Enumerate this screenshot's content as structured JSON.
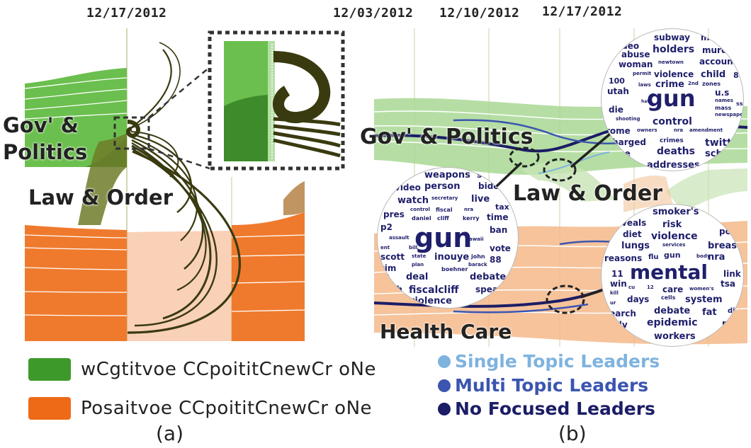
{
  "panel_a": {
    "date": "12/17/2012",
    "topic_gov": "Gov' & Politics",
    "topic_gov_line1": "Gov' &",
    "topic_gov_line2": "Politics",
    "topic_law": "Law & Order",
    "label": "(a)",
    "colors": {
      "green_light": "#5cae43",
      "green_dark": "#3d8b2a",
      "orange": "#ee7a2a",
      "dark_flow": "#3a3a10"
    }
  },
  "panel_b": {
    "dates": [
      "12/03/2012",
      "12/10/2012",
      "12/17/2012"
    ],
    "topic_gov": "Gov' & Politics",
    "topic_law": "Law & Order",
    "topic_health": "Health Care",
    "label": "(b)",
    "cloud_top_right": [
      "subway",
      "mo",
      "ideo",
      "abuse",
      "holders",
      "murde",
      "woman",
      "newtown",
      "accoun",
      "permit",
      "violence",
      "child",
      "100",
      "laws",
      "crime",
      "2nd",
      "zones",
      "utah",
      "gun",
      "u.s",
      "hate",
      "names",
      "die",
      "mass",
      "ss",
      "shooting",
      "newspaper",
      "control",
      "rome",
      "owners",
      "nra",
      "amendment",
      "charged",
      "crimes",
      "twitter",
      "rage",
      "deaths",
      "scho",
      "addresses",
      "80"
    ],
    "cloud_left": [
      "weapons",
      "s",
      "video",
      "person",
      "bide",
      "secretary",
      "live",
      "watch",
      "tax",
      "control",
      "fiscal",
      "nra",
      "pres",
      "daniel",
      "cliff",
      "kerry",
      "time",
      "p2",
      "gun",
      "ban",
      "assault",
      "hawaii",
      "ent",
      "bill",
      "vote",
      "scott",
      "state",
      "inouye",
      "john",
      "88",
      "tim",
      "plan",
      "barack",
      "boehner",
      "debate",
      "t-s",
      "deal",
      "outh",
      "speak",
      "fiscalcliff",
      "violence"
    ],
    "cloud_bottom_right": [
      "smoker's",
      "publ",
      "veals",
      "risk",
      "pollo",
      "diet",
      "violence",
      "lungs",
      "services",
      "breast",
      "reasons",
      "flu",
      "gun",
      "body",
      "nra",
      "11",
      "mental",
      "link",
      "win",
      "cu",
      "12",
      "women's",
      "tsa",
      "care",
      "kill",
      "days",
      "cells",
      "system",
      "ur",
      "search",
      "debate",
      "fat",
      "di",
      "ually",
      "epidemic",
      "mon",
      "workers",
      "hl"
    ]
  },
  "legend": [
    {
      "label": "wCgtitvoe CCpoititCnewCr oNe",
      "color": "#3d9a2a"
    },
    {
      "label": "Posaitvoe CCpoititCnewCr oNe",
      "color": "#ee6a16"
    }
  ],
  "leaders": [
    {
      "label": "Single Topic Leaders",
      "color": "#7fb3df"
    },
    {
      "label": "Multi Topic Leaders",
      "color": "#3b55b0"
    },
    {
      "label": "No Focused Leaders",
      "color": "#1b1d66"
    }
  ]
}
